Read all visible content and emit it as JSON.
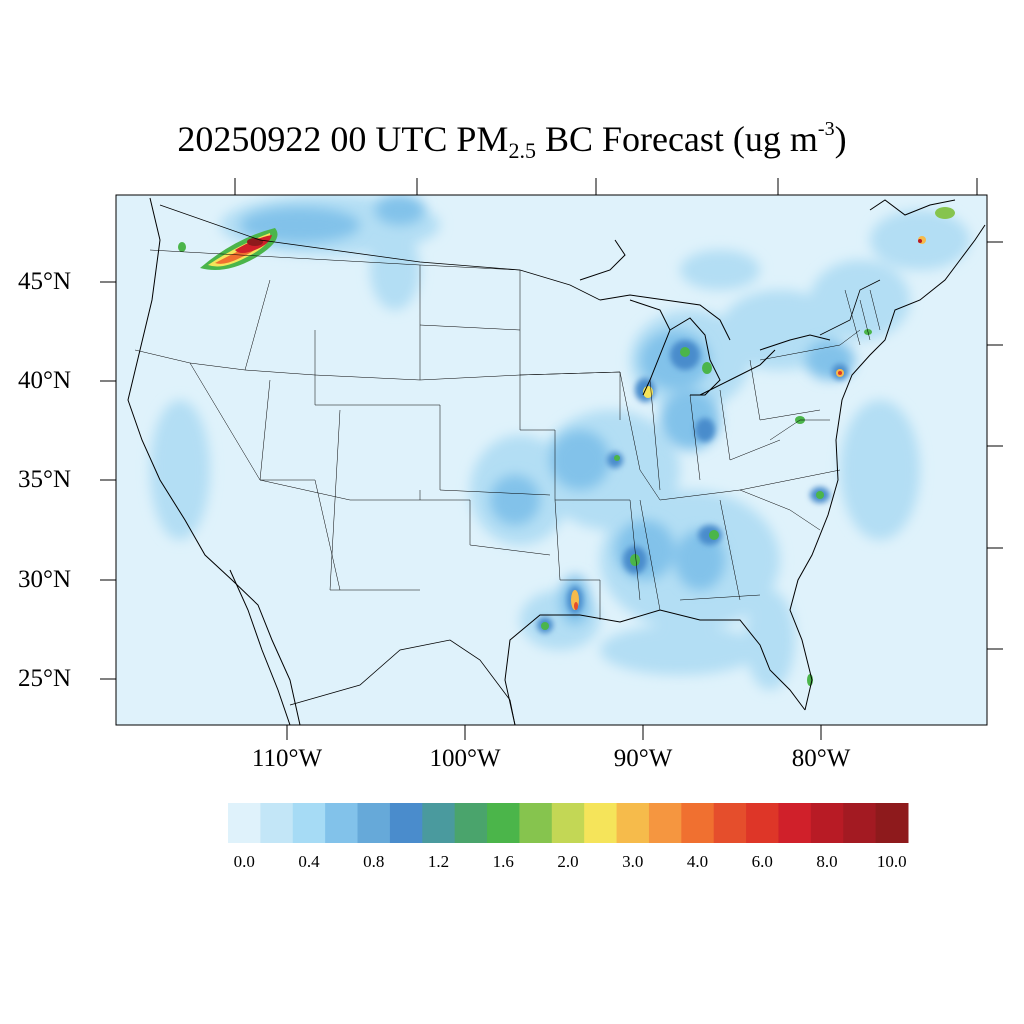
{
  "title": {
    "prefix": "20250922 00 UTC PM",
    "sub": "2.5",
    "middle": " BC Forecast (ug m",
    "sup": "-3",
    "suffix": ")"
  },
  "lat_labels": [
    "45°N",
    "40°N",
    "35°N",
    "30°N",
    "25°N"
  ],
  "lon_labels": [
    "110°W",
    "100°W",
    "90°W",
    "80°W"
  ],
  "colorbar": {
    "labels": [
      "0.0",
      "0.4",
      "0.8",
      "1.2",
      "1.6",
      "2.0",
      "3.0",
      "4.0",
      "6.0",
      "8.0",
      "10.0"
    ],
    "colors": [
      "#dff2fb",
      "#c3e6f7",
      "#a6dbf5",
      "#82c2ea",
      "#66a9d9",
      "#4a8ccc",
      "#4a9a9e",
      "#4aa46c",
      "#4bb54a",
      "#86c44e",
      "#c3d755",
      "#f5e45a",
      "#f6bb4b",
      "#f59640",
      "#f07030",
      "#e54e2c",
      "#de3628",
      "#d0202a",
      "#b81b25",
      "#a31a22",
      "#8e1a1c"
    ]
  }
}
